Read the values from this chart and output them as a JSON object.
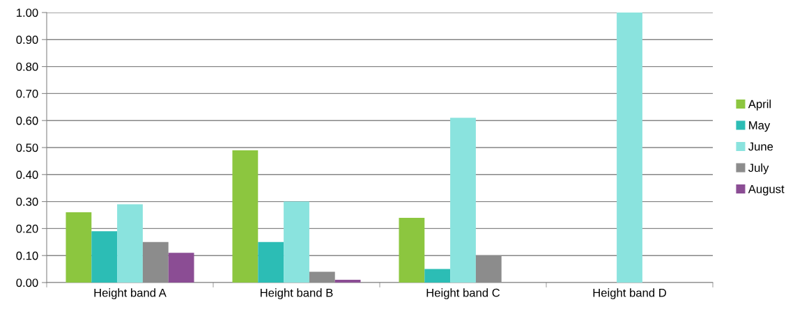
{
  "chart_data": {
    "type": "bar",
    "categories": [
      "Height band A",
      "Height band B",
      "Height band C",
      "Height band D"
    ],
    "series": [
      {
        "name": "April",
        "color": "#8cc63f",
        "values": [
          0.26,
          0.49,
          0.24,
          0
        ]
      },
      {
        "name": "May",
        "color": "#2cbdb5",
        "values": [
          0.19,
          0.15,
          0.05,
          0
        ]
      },
      {
        "name": "June",
        "color": "#8ae3de",
        "values": [
          0.29,
          0.3,
          0.61,
          1.0
        ]
      },
      {
        "name": "July",
        "color": "#8c8c8c",
        "values": [
          0.15,
          0.04,
          0.1,
          0
        ]
      },
      {
        "name": "August",
        "color": "#8b4d94",
        "values": [
          0.11,
          0.01,
          0,
          0
        ]
      }
    ],
    "ylim": [
      0,
      1.0
    ],
    "yticks": [
      {
        "value": 0,
        "label": "0.00"
      },
      {
        "value": 0.1,
        "label": "0.10"
      },
      {
        "value": 0.2,
        "label": "0.20"
      },
      {
        "value": 0.3,
        "label": "0.30"
      },
      {
        "value": 0.4,
        "label": "0.40"
      },
      {
        "value": 0.5,
        "label": "0.50"
      },
      {
        "value": 0.6,
        "label": "0.60"
      },
      {
        "value": 0.7,
        "label": "0.70"
      },
      {
        "value": 0.8,
        "label": "0.80"
      },
      {
        "value": 0.9,
        "label": "0.90"
      },
      {
        "value": 1.0,
        "label": "1.00"
      }
    ],
    "grid": "y",
    "legend": "right"
  }
}
